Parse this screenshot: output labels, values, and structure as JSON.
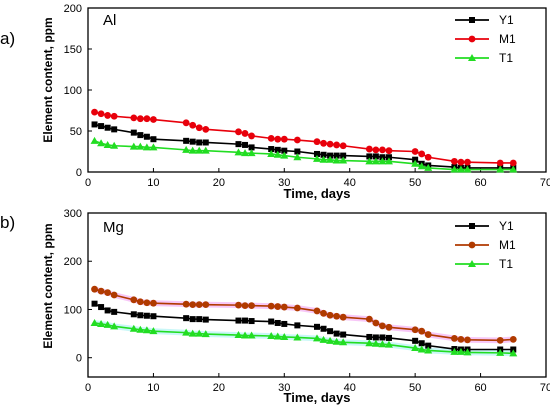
{
  "chart_data": [
    {
      "type": "line",
      "panel_label": "a)",
      "element_label": "Al",
      "xlabel": "Time, days",
      "ylabel": "Element content, ppm",
      "xlim": [
        0,
        70
      ],
      "ylim": [
        0,
        200
      ],
      "xticks": [
        "0",
        "10",
        "20",
        "30",
        "40",
        "50",
        "60",
        "70"
      ],
      "yticks": [
        "0",
        "50",
        "100",
        "150",
        "200"
      ],
      "legend_position": "top-right",
      "series": [
        {
          "name": "Y1",
          "color": "#000000",
          "marker": "square",
          "x": [
            1,
            2,
            3,
            4,
            7,
            8,
            9,
            10,
            15,
            16,
            17,
            18,
            23,
            24,
            25,
            28,
            29,
            30,
            32,
            35,
            36,
            37,
            38,
            39,
            43,
            44,
            45,
            46,
            50,
            51,
            52,
            56,
            57,
            58,
            63,
            65
          ],
          "y": [
            58,
            56,
            54,
            52,
            48,
            45,
            43,
            40,
            38,
            37,
            36,
            36,
            34,
            33,
            30,
            28,
            27,
            26,
            25,
            22,
            21,
            20,
            20,
            20,
            19,
            19,
            18,
            18,
            15,
            10,
            8,
            6,
            5,
            5,
            5,
            5
          ]
        },
        {
          "name": "M1",
          "color": "#e8000b",
          "marker": "circle",
          "x": [
            1,
            2,
            3,
            4,
            7,
            8,
            9,
            10,
            15,
            16,
            17,
            18,
            23,
            24,
            25,
            28,
            29,
            30,
            32,
            35,
            36,
            37,
            38,
            39,
            43,
            44,
            45,
            46,
            50,
            51,
            52,
            56,
            57,
            58,
            63,
            65
          ],
          "y": [
            73,
            71,
            69,
            68,
            66,
            65,
            65,
            64,
            60,
            57,
            54,
            52,
            49,
            47,
            44,
            41,
            40,
            40,
            39,
            37,
            35,
            34,
            33,
            32,
            28,
            27,
            27,
            26,
            25,
            22,
            18,
            13,
            12,
            12,
            11,
            11
          ]
        },
        {
          "name": "T1",
          "color": "#22dd22",
          "marker": "triangle",
          "x": [
            1,
            2,
            3,
            4,
            7,
            8,
            9,
            10,
            15,
            16,
            17,
            18,
            23,
            24,
            25,
            28,
            29,
            30,
            32,
            35,
            36,
            37,
            38,
            39,
            43,
            44,
            45,
            46,
            50,
            51,
            52,
            56,
            57,
            58,
            63,
            65
          ],
          "y": [
            38,
            35,
            33,
            32,
            31,
            31,
            30,
            30,
            27,
            26,
            26,
            26,
            24,
            23,
            23,
            22,
            21,
            20,
            18,
            16,
            15,
            15,
            14,
            14,
            13,
            13,
            13,
            13,
            10,
            7,
            5,
            3,
            3,
            3,
            3,
            3
          ]
        }
      ]
    },
    {
      "type": "line",
      "panel_label": "b)",
      "element_label": "Mg",
      "xlabel": "Time, days",
      "ylabel": "Element content, ppm",
      "xlim": [
        0,
        70
      ],
      "ylim": [
        -40,
        300
      ],
      "xticks": [
        "0",
        "10",
        "20",
        "30",
        "40",
        "50",
        "60",
        "70"
      ],
      "yticks": [
        "0",
        "100",
        "200",
        "300"
      ],
      "ytick_values": [
        0,
        100,
        200,
        300
      ],
      "legend_position": "top-right",
      "series": [
        {
          "name": "Y1",
          "color": "#000000",
          "marker": "square",
          "x": [
            1,
            2,
            3,
            4,
            7,
            8,
            9,
            10,
            15,
            16,
            17,
            18,
            23,
            24,
            25,
            28,
            29,
            30,
            32,
            35,
            36,
            37,
            38,
            39,
            43,
            44,
            45,
            46,
            50,
            51,
            52,
            56,
            57,
            58,
            63,
            65
          ],
          "y": [
            112,
            105,
            98,
            95,
            90,
            88,
            87,
            86,
            82,
            80,
            80,
            79,
            77,
            77,
            76,
            75,
            72,
            70,
            67,
            64,
            60,
            55,
            50,
            48,
            43,
            42,
            42,
            41,
            35,
            30,
            25,
            18,
            17,
            17,
            17,
            17
          ]
        },
        {
          "name": "M1",
          "color": "#b03a00",
          "marker": "circle",
          "band_color": "#ee82ee",
          "x": [
            1,
            2,
            3,
            4,
            7,
            8,
            9,
            10,
            15,
            16,
            17,
            18,
            23,
            24,
            25,
            28,
            29,
            30,
            32,
            35,
            36,
            37,
            38,
            39,
            43,
            44,
            45,
            46,
            50,
            51,
            52,
            56,
            57,
            58,
            63,
            65
          ],
          "y": [
            142,
            138,
            135,
            130,
            120,
            116,
            114,
            113,
            111,
            110,
            110,
            110,
            109,
            108,
            108,
            107,
            106,
            105,
            103,
            97,
            92,
            88,
            86,
            84,
            80,
            72,
            66,
            63,
            58,
            55,
            48,
            40,
            38,
            37,
            36,
            38
          ]
        },
        {
          "name": "T1",
          "color": "#22dd22",
          "marker": "triangle",
          "band_color": "#88eeee",
          "x": [
            1,
            2,
            3,
            4,
            7,
            8,
            9,
            10,
            15,
            16,
            17,
            18,
            23,
            24,
            25,
            28,
            29,
            30,
            32,
            35,
            36,
            37,
            38,
            39,
            43,
            44,
            45,
            46,
            50,
            51,
            52,
            56,
            57,
            58,
            63,
            65
          ],
          "y": [
            72,
            70,
            68,
            65,
            60,
            58,
            57,
            55,
            52,
            50,
            50,
            49,
            47,
            46,
            46,
            45,
            44,
            43,
            42,
            40,
            37,
            35,
            33,
            32,
            30,
            29,
            28,
            27,
            20,
            17,
            15,
            12,
            12,
            11,
            10,
            9
          ]
        }
      ]
    }
  ]
}
